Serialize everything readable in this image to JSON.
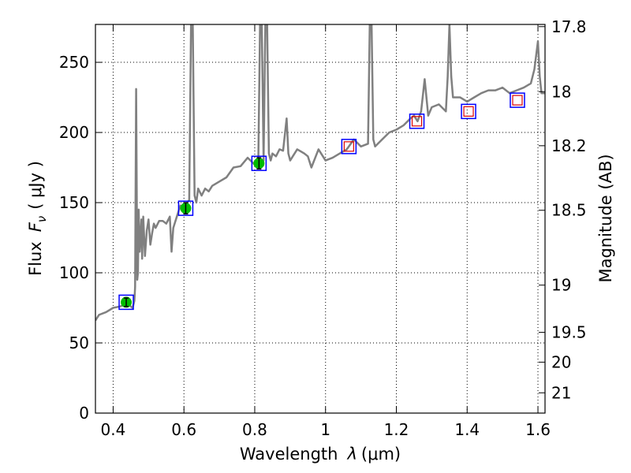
{
  "chart_data": {
    "type": "line",
    "xlabel": "Wavelength",
    "xlabel_symbol": "λ",
    "xlabel_unit": "(μm)",
    "ylabel": "Flux",
    "ylabel_symbol": "F",
    "ylabel_sub": "ν",
    "ylabel_unit": "( μJy )",
    "y2label": "Magnitude (AB)",
    "xlim": [
      0.35,
      1.62
    ],
    "ylim": [
      0,
      277
    ],
    "grid": true,
    "x_ticks": [
      {
        "value": 0.4,
        "label": "0.4"
      },
      {
        "value": 0.6,
        "label": "0.6"
      },
      {
        "value": 0.8,
        "label": "0.8"
      },
      {
        "value": 1.0,
        "label": "1"
      },
      {
        "value": 1.2,
        "label": "1.2"
      },
      {
        "value": 1.4,
        "label": "1.4"
      },
      {
        "value": 1.6,
        "label": "1.6"
      }
    ],
    "y_ticks": [
      {
        "value": 0,
        "label": "0"
      },
      {
        "value": 50,
        "label": "50"
      },
      {
        "value": 100,
        "label": "100"
      },
      {
        "value": 150,
        "label": "150"
      },
      {
        "value": 200,
        "label": "200"
      },
      {
        "value": 250,
        "label": "250"
      }
    ],
    "y2_ticks": [
      {
        "mag": 17.8,
        "label": "17.8"
      },
      {
        "mag": 18,
        "label": "18"
      },
      {
        "mag": 18.2,
        "label": "18.2"
      },
      {
        "mag": 18.5,
        "label": "18.5"
      },
      {
        "mag": 19,
        "label": "19"
      },
      {
        "mag": 19.5,
        "label": "19.5"
      },
      {
        "mag": 20,
        "label": "20"
      },
      {
        "mag": 21,
        "label": "21"
      }
    ],
    "series": [
      {
        "kind": "spectrum",
        "color": "#808080",
        "x": [
          0.35,
          0.36,
          0.38,
          0.4,
          0.42,
          0.44,
          0.455,
          0.46,
          0.462,
          0.465,
          0.468,
          0.47,
          0.472,
          0.475,
          0.48,
          0.482,
          0.485,
          0.49,
          0.495,
          0.5,
          0.505,
          0.51,
          0.515,
          0.52,
          0.53,
          0.54,
          0.55,
          0.56,
          0.565,
          0.57,
          0.58,
          0.59,
          0.6,
          0.61,
          0.615,
          0.62,
          0.625,
          0.63,
          0.635,
          0.64,
          0.65,
          0.66,
          0.67,
          0.68,
          0.7,
          0.72,
          0.74,
          0.76,
          0.78,
          0.8,
          0.81,
          0.815,
          0.82,
          0.825,
          0.83,
          0.835,
          0.84,
          0.845,
          0.85,
          0.86,
          0.87,
          0.88,
          0.89,
          0.895,
          0.9,
          0.92,
          0.94,
          0.95,
          0.96,
          0.98,
          1.0,
          1.02,
          1.04,
          1.06,
          1.08,
          1.1,
          1.12,
          1.125,
          1.13,
          1.135,
          1.14,
          1.16,
          1.18,
          1.2,
          1.22,
          1.24,
          1.25,
          1.26,
          1.27,
          1.28,
          1.29,
          1.3,
          1.32,
          1.34,
          1.345,
          1.35,
          1.355,
          1.36,
          1.38,
          1.4,
          1.42,
          1.44,
          1.46,
          1.48,
          1.5,
          1.52,
          1.54,
          1.56,
          1.58,
          1.59,
          1.6,
          1.605,
          1.61,
          1.62
        ],
        "y": [
          66,
          70,
          72,
          75,
          76,
          78,
          75,
          80,
          90,
          231,
          95,
          100,
          145,
          115,
          138,
          110,
          140,
          112,
          130,
          138,
          120,
          128,
          135,
          132,
          137,
          137,
          135,
          140,
          115,
          132,
          140,
          148,
          145,
          150,
          152,
          277,
          277,
          155,
          150,
          160,
          155,
          160,
          158,
          162,
          165,
          168,
          175,
          176,
          182,
          177,
          180,
          277,
          277,
          180,
          277,
          277,
          185,
          180,
          185,
          183,
          188,
          187,
          210,
          185,
          180,
          188,
          185,
          183,
          175,
          188,
          180,
          182,
          185,
          188,
          195,
          190,
          192,
          277,
          277,
          195,
          190,
          195,
          200,
          202,
          205,
          210,
          212,
          208,
          215,
          238,
          212,
          218,
          220,
          215,
          240,
          277,
          240,
          225,
          225,
          222,
          225,
          228,
          230,
          230,
          232,
          228,
          230,
          232,
          235,
          245,
          265,
          240,
          228,
          228
        ]
      },
      {
        "kind": "photometry_box",
        "color": "#0000ff",
        "x": [
          0.437,
          0.605,
          0.812,
          1.066,
          1.258,
          1.404,
          1.542
        ],
        "y": [
          79,
          146,
          178,
          190,
          208,
          215,
          223
        ]
      },
      {
        "kind": "model_box",
        "color": "#dd0000",
        "x": [
          1.066,
          1.258,
          1.404,
          1.542
        ],
        "y": [
          190,
          208,
          215,
          223
        ]
      },
      {
        "kind": "observed",
        "color": "#00bb00",
        "x": [
          0.437,
          0.605,
          0.812
        ],
        "y": [
          79,
          146,
          178
        ],
        "err": [
          3,
          4,
          4
        ]
      }
    ]
  }
}
